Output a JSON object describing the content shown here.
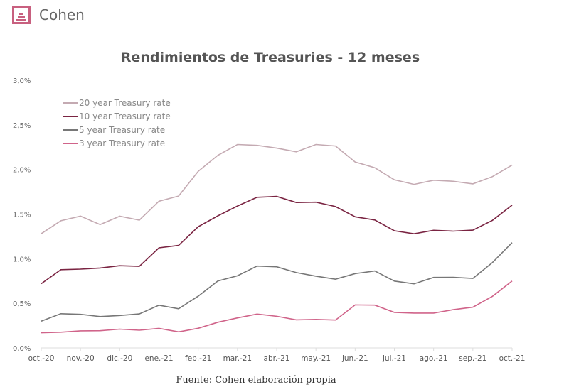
{
  "brand": {
    "name": "Cohen",
    "accent": "#c8607f"
  },
  "source": "Fuente: Cohen elaboración propia",
  "chart_data": {
    "type": "line",
    "title": "Rendimientos de Treasuries - 12 meses",
    "xlabel": "",
    "ylabel": "",
    "ylim": [
      0,
      3
    ],
    "yticks": [
      "0,0%",
      "0,5%",
      "1,0%",
      "1,5%",
      "2,0%",
      "2,5%",
      "3,0%"
    ],
    "xticks": [
      "oct.-20",
      "nov.-20",
      "dic.-20",
      "ene.-21",
      "feb.-21",
      "mar.-21",
      "abr.-21",
      "may.-21",
      "jun.-21",
      "jul.-21",
      "ago.-21",
      "sep.-21",
      "oct.-21"
    ],
    "x_month_index": [
      0,
      0.5,
      1,
      1.5,
      2,
      2.5,
      3,
      3.5,
      4,
      4.5,
      5,
      5.5,
      6,
      6.5,
      7,
      7.5,
      8,
      8.5,
      9,
      9.5,
      10,
      10.5,
      11,
      11.5,
      12
    ],
    "legend_position": "top-left",
    "series": [
      {
        "name": "20 year Treasury rate",
        "color": "#c4aab2",
        "values": [
          1.28,
          1.4,
          1.45,
          1.38,
          1.5,
          1.46,
          1.65,
          1.68,
          1.95,
          2.15,
          2.3,
          2.3,
          2.25,
          2.18,
          2.25,
          2.25,
          2.1,
          2.05,
          1.9,
          1.82,
          1.85,
          1.85,
          1.85,
          1.95,
          2.05
        ]
      },
      {
        "name": "10 year Treasury rate",
        "color": "#7a2442",
        "values": [
          0.72,
          0.85,
          0.88,
          0.92,
          0.95,
          0.92,
          1.1,
          1.12,
          1.35,
          1.5,
          1.62,
          1.7,
          1.68,
          1.6,
          1.62,
          1.6,
          1.5,
          1.45,
          1.3,
          1.25,
          1.3,
          1.32,
          1.35,
          1.45,
          1.6
        ]
      },
      {
        "name": "5 year Treasury rate",
        "color": "#777777",
        "values": [
          0.3,
          0.38,
          0.4,
          0.38,
          0.37,
          0.36,
          0.45,
          0.43,
          0.6,
          0.78,
          0.82,
          0.9,
          0.88,
          0.83,
          0.82,
          0.8,
          0.85,
          0.85,
          0.72,
          0.7,
          0.8,
          0.82,
          0.8,
          0.95,
          1.18
        ]
      },
      {
        "name": "3 year Treasury rate",
        "color": "#d0648a",
        "values": [
          0.17,
          0.2,
          0.22,
          0.2,
          0.19,
          0.17,
          0.21,
          0.2,
          0.25,
          0.3,
          0.32,
          0.35,
          0.34,
          0.33,
          0.35,
          0.33,
          0.47,
          0.45,
          0.38,
          0.4,
          0.42,
          0.45,
          0.45,
          0.55,
          0.75
        ]
      }
    ]
  }
}
